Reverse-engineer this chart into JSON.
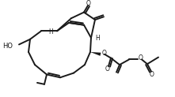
{
  "bg_color": "#ffffff",
  "line_color": "#1a1a1a",
  "lw": 1.4,
  "figsize": [
    2.21,
    1.23
  ],
  "dpi": 100,
  "xlim": [
    0,
    221
  ],
  "ylim": [
    0,
    123
  ]
}
